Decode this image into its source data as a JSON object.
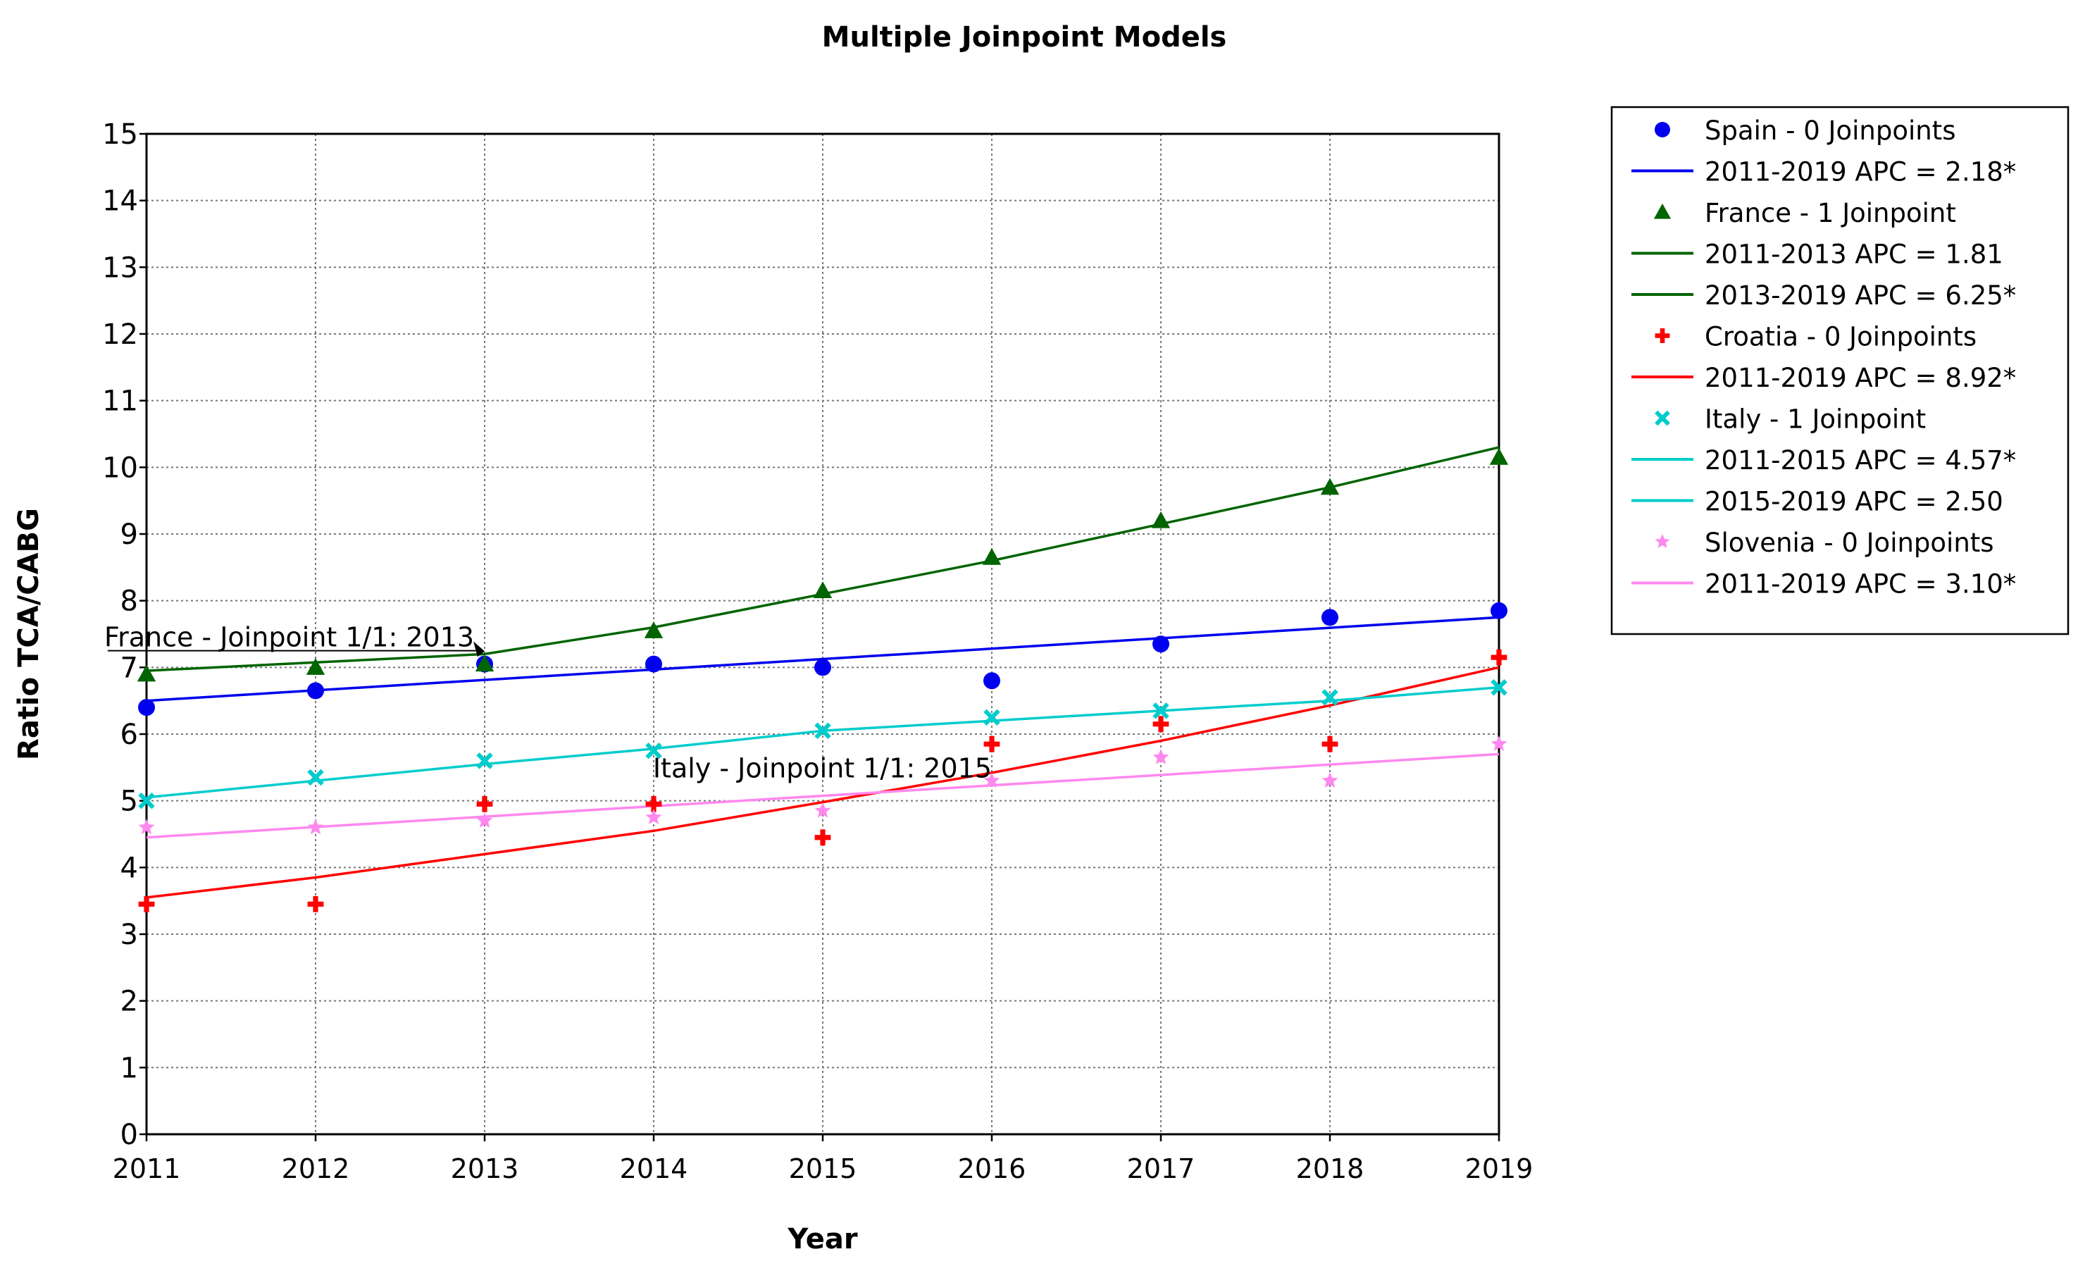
{
  "chart_data": {
    "type": "line",
    "title": "Multiple Joinpoint Models",
    "xlabel": "Year",
    "ylabel": "Ratio TCA/CABG",
    "xlim": [
      2011,
      2019
    ],
    "ylim": [
      0,
      15
    ],
    "x_ticks": [
      "2011",
      "2012",
      "2013",
      "2014",
      "2015",
      "2016",
      "2017",
      "2018",
      "2019"
    ],
    "y_ticks": [
      "0",
      "1",
      "2",
      "3",
      "4",
      "5",
      "6",
      "7",
      "8",
      "9",
      "10",
      "11",
      "12",
      "13",
      "14",
      "15"
    ],
    "grid": true,
    "legend_position": "right",
    "x": [
      2011,
      2012,
      2013,
      2014,
      2015,
      2016,
      2017,
      2018,
      2019
    ],
    "series": [
      {
        "key": "spain",
        "name": "Spain - 0 Joinpoints",
        "marker": "circle",
        "color": "#0000ee",
        "observed": [
          6.4,
          6.65,
          7.05,
          7.05,
          7.0,
          6.8,
          7.35,
          7.75,
          7.85
        ],
        "fit_points": [
          [
            2011,
            6.5
          ],
          [
            2019,
            7.75
          ]
        ],
        "segments": [
          "2011-2019 APC  = 2.18*"
        ]
      },
      {
        "key": "france",
        "name": "France - 1 Joinpoint",
        "marker": "triangle",
        "color": "#006400",
        "observed": [
          6.9,
          7.0,
          7.05,
          7.55,
          8.15,
          8.65,
          9.2,
          9.7,
          10.15
        ],
        "fit_points": [
          [
            2011,
            6.95
          ],
          [
            2013,
            7.2
          ],
          [
            2014,
            7.6
          ],
          [
            2015,
            8.1
          ],
          [
            2016,
            8.6
          ],
          [
            2017,
            9.15
          ],
          [
            2018,
            9.7
          ],
          [
            2019,
            10.3
          ]
        ],
        "segments": [
          "2011-2013 APC  = 1.81",
          "2013-2019 APC  = 6.25*"
        ]
      },
      {
        "key": "croatia",
        "name": "Croatia - 0 Joinpoints",
        "marker": "cross",
        "color": "#ff0000",
        "observed": [
          3.45,
          3.45,
          4.95,
          4.95,
          4.45,
          5.85,
          6.15,
          5.85,
          7.15
        ],
        "fit_points": [
          [
            2011,
            3.55
          ],
          [
            2012,
            3.85
          ],
          [
            2013,
            4.2
          ],
          [
            2014,
            4.55
          ],
          [
            2015,
            4.98
          ],
          [
            2016,
            5.42
          ],
          [
            2017,
            5.9
          ],
          [
            2018,
            6.43
          ],
          [
            2019,
            7.0
          ]
        ],
        "segments": [
          "2011-2019 APC  = 8.92*"
        ]
      },
      {
        "key": "italy",
        "name": "Italy - 1 Joinpoint",
        "marker": "x",
        "color": "#00cccc",
        "observed": [
          5.0,
          5.35,
          5.6,
          5.75,
          6.05,
          6.25,
          6.35,
          6.55,
          6.7
        ],
        "fit_points": [
          [
            2011,
            5.05
          ],
          [
            2012,
            5.3
          ],
          [
            2013,
            5.55
          ],
          [
            2014,
            5.78
          ],
          [
            2015,
            6.05
          ],
          [
            2016,
            6.2
          ],
          [
            2017,
            6.35
          ],
          [
            2018,
            6.5
          ],
          [
            2019,
            6.7
          ]
        ],
        "segments": [
          "2011-2015 APC  = 4.57*",
          "2015-2019 APC  = 2.50"
        ]
      },
      {
        "key": "slovenia",
        "name": "Slovenia - 0 Joinpoints",
        "marker": "star",
        "color": "#ff88ee",
        "observed": [
          4.6,
          4.6,
          4.7,
          4.75,
          4.85,
          5.3,
          5.65,
          5.3,
          5.85
        ],
        "fit_points": [
          [
            2011,
            4.45
          ],
          [
            2019,
            5.7
          ]
        ],
        "segments": [
          "2011-2019 APC  = 3.10*"
        ]
      }
    ],
    "annotations": [
      {
        "text": "France - Joinpoint 1/1:  2013",
        "x": 2013,
        "y": 7.2,
        "color": "#000000"
      },
      {
        "text": "Italy - Joinpoint 1/1:  2015",
        "x": 2015,
        "y": 6.05,
        "color": "#000000"
      }
    ]
  }
}
